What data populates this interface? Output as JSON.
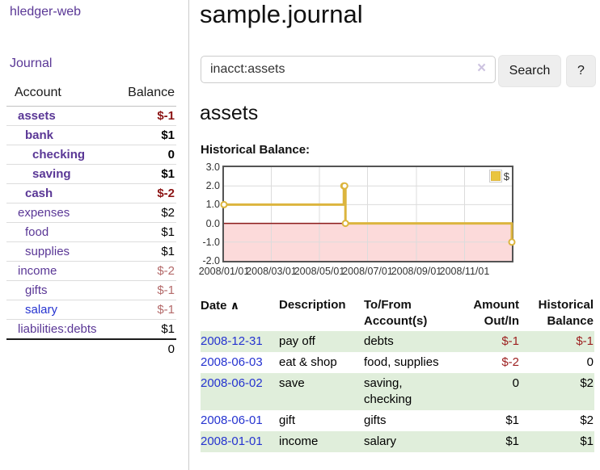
{
  "sidebar": {
    "brand": "hledger-web",
    "nav_journal": "Journal",
    "accounts_header": {
      "account": "Account",
      "balance": "Balance"
    },
    "accounts": [
      {
        "name": "assets",
        "balance": "$-1",
        "depth": 0,
        "bold": true,
        "balance_style": "neg",
        "link_style": "purple"
      },
      {
        "name": "bank",
        "balance": "$1",
        "depth": 1,
        "bold": true,
        "balance_style": "pos",
        "link_style": "purple"
      },
      {
        "name": "checking",
        "balance": "0",
        "depth": 2,
        "bold": true,
        "balance_style": "pos",
        "link_style": "purple"
      },
      {
        "name": "saving",
        "balance": "$1",
        "depth": 2,
        "bold": true,
        "balance_style": "pos",
        "link_style": "purple"
      },
      {
        "name": "cash",
        "balance": "$-2",
        "depth": 1,
        "bold": true,
        "balance_style": "neg",
        "link_style": "purple"
      },
      {
        "name": "expenses",
        "balance": "$2",
        "depth": 0,
        "bold": false,
        "balance_style": "pos",
        "link_style": "purple"
      },
      {
        "name": "food",
        "balance": "$1",
        "depth": 1,
        "bold": false,
        "balance_style": "pos",
        "link_style": "purple"
      },
      {
        "name": "supplies",
        "balance": "$1",
        "depth": 1,
        "bold": false,
        "balance_style": "pos",
        "link_style": "purple"
      },
      {
        "name": "income",
        "balance": "$-2",
        "depth": 0,
        "bold": false,
        "balance_style": "neg-weak",
        "link_style": "purple"
      },
      {
        "name": "gifts",
        "balance": "$-1",
        "depth": 1,
        "bold": false,
        "balance_style": "neg-weak",
        "link_style": "purple"
      },
      {
        "name": "salary",
        "balance": "$-1",
        "depth": 1,
        "bold": false,
        "balance_style": "neg-weak",
        "link_style": "blue"
      },
      {
        "name": "liabilities:debts",
        "balance": "$1",
        "depth": 0,
        "bold": false,
        "balance_style": "pos",
        "link_style": "purple"
      }
    ],
    "total": "0"
  },
  "header": {
    "title": "sample.journal"
  },
  "search": {
    "value": "inacct:assets",
    "clear_icon": "×",
    "button": "Search",
    "help_button": "?"
  },
  "account_page": {
    "heading": "assets",
    "chart_label": "Historical Balance:"
  },
  "chart_data": {
    "type": "line",
    "style": "step",
    "title": "Historical Balance:",
    "series": [
      {
        "name": "$",
        "color": "#dcb53e",
        "x": [
          "2008-01-01",
          "2008-06-01",
          "2008-06-02",
          "2008-06-03",
          "2008-12-31"
        ],
        "y": [
          1,
          2,
          2,
          0,
          -1
        ]
      }
    ],
    "x_range": [
      "2008-01-01",
      "2008-12-31"
    ],
    "ylim": [
      -2,
      3
    ],
    "y_ticks": [
      "3.0",
      "2.0",
      "1.0",
      "0.0",
      "-1.0",
      "-2.0"
    ],
    "x_ticks": [
      "2008/01/01",
      "2008/03/01",
      "2008/05/01",
      "2008/07/01",
      "2008/09/01",
      "2008/11/01"
    ],
    "grid": true,
    "legend": {
      "label": "$",
      "position": "top-right"
    },
    "negative_region_fill": "#fcdada",
    "zero_line_color": "#8b1a1a",
    "grid_color": "#dcdcdc",
    "border_color": "#545454"
  },
  "transactions": {
    "headers": {
      "date": "Date",
      "sort_icon": "∧",
      "description": "Description",
      "tofrom": "To/From Account(s)",
      "amount": "Amount Out/In",
      "historical": "Historical Balance"
    },
    "rows": [
      {
        "date": "2008-12-31",
        "description": "pay off",
        "tofrom": "debts",
        "amount": "$-1",
        "historical": "$-1"
      },
      {
        "date": "2008-06-03",
        "description": "eat & shop",
        "tofrom": "food, supplies",
        "amount": "$-2",
        "historical": "0"
      },
      {
        "date": "2008-06-02",
        "description": "save",
        "tofrom": "saving, checking",
        "amount": "0",
        "historical": "$2"
      },
      {
        "date": "2008-06-01",
        "description": "gift",
        "tofrom": "gifts",
        "amount": "$1",
        "historical": "$2"
      },
      {
        "date": "2008-01-01",
        "description": "income",
        "tofrom": "salary",
        "amount": "$1",
        "historical": "$1"
      }
    ]
  }
}
